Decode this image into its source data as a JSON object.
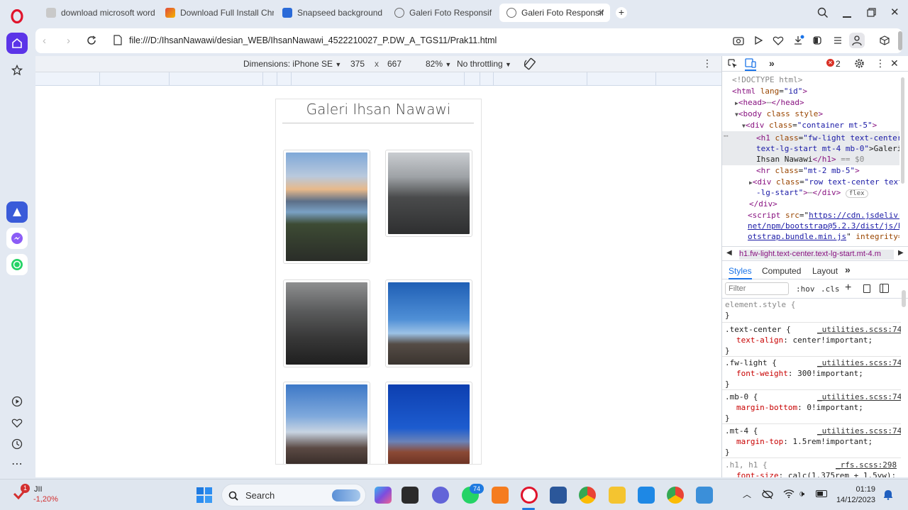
{
  "browser": {
    "tabs": [
      {
        "label": "download microsoft word",
        "favicon_color": "#c9c9c9"
      },
      {
        "label": "Download Full Install Chro",
        "favicon_color": "#e04a3c"
      },
      {
        "label": "Snapseed background",
        "favicon_color": "#2a6ad8"
      },
      {
        "label": "Galeri Foto Responsif",
        "favicon_color": "#6b6b6b"
      },
      {
        "label": "Galeri Foto Responsif",
        "favicon_color": "#6b6b6b",
        "active": true
      }
    ],
    "url": "file:///D:/IhsanNawawi/desian_WEB/IhsanNawawi_4522210027_P.DW_A_TGS11/Prak11.html"
  },
  "device_toolbar": {
    "dimensions_label": "Dimensions: iPhone SE",
    "width": "375",
    "times": "x",
    "height": "667",
    "zoom": "82%",
    "throttling": "No throttling"
  },
  "page": {
    "title": "Galeri Ihsan Nawawi",
    "photos": [
      {
        "name": "lake-sunset"
      },
      {
        "name": "rocky-hill-hiker"
      },
      {
        "name": "climbers-fog"
      },
      {
        "name": "summit-sky"
      },
      {
        "name": "summit-smoke"
      },
      {
        "name": "blue-sky-summit"
      }
    ]
  },
  "devtools": {
    "error_count": "2",
    "dom": {
      "doctype": "<!DOCTYPE html>",
      "html_open_tag": "<html",
      "html_lang_attr": "lang",
      "html_lang_val": "\"id\"",
      "html_close": ">",
      "head": "<head>",
      "head_close": "</head>",
      "body_open": "<body",
      "body_attr": "class style",
      "body_close": ">",
      "div_container_tag": "<div",
      "div_container_attr": "class",
      "div_container_val": "\"container mt-5\"",
      "h1_tag": "<h1",
      "h1_attr": "class",
      "h1_val_1": "\"fw-light text-center",
      "h1_val_2": "text-lg-start mt-4 mb-0\"",
      "h1_text_1": ">Galeri",
      "h1_text_2": "Ihsan Nawawi",
      "h1_close": "</h1>",
      "h1_eq": "== $0",
      "hr_tag": "<hr",
      "hr_attr": "class",
      "hr_val": "\"mt-2 mb-5\"",
      "div_row_tag": "<div",
      "div_row_attr": "class",
      "div_row_val_1": "\"row text-center text",
      "div_row_val_2": "-lg-start\"",
      "div_close_tag": "</div>",
      "flex_badge": "flex",
      "div_end": "</div>",
      "script_tag": "<script",
      "script_attr": "src",
      "script_src_1": "https://cdn.jsdelivr.",
      "script_src_2": "net/npm/bootstrap@5.2.3/dist/js/bo",
      "script_src_3": "otstrap.bundle.min.js",
      "script_integrity": "integrity="
    },
    "breadcrumb": "h1.fw-light.text-center.text-lg-start.mt-4.m",
    "panel_tabs": [
      "Styles",
      "Computed",
      "Layout"
    ],
    "filter_placeholder": "Filter",
    "hov": ":hov",
    "cls": ".cls",
    "rules": [
      {
        "selector": "element.style {",
        "source": "",
        "decl_prop": "",
        "decl_val": ""
      },
      {
        "selector": ".text-center {",
        "source": "_utilities.scss:74",
        "decl_prop": "text-align",
        "decl_val": "center!important;"
      },
      {
        "selector": ".fw-light {",
        "source": "_utilities.scss:74",
        "decl_prop": "font-weight",
        "decl_val": "300!important;"
      },
      {
        "selector": ".mb-0 {",
        "source": "_utilities.scss:74",
        "decl_prop": "margin-bottom",
        "decl_val": "0!important;"
      },
      {
        "selector": ".mt-4 {",
        "source": "_utilities.scss:74",
        "decl_prop": "margin-top",
        "decl_val": "1.5rem!important;"
      },
      {
        "selector": ".h1, h1 {",
        "source": "_rfs.scss:298",
        "decl_prop": "font-size",
        "decl_val": "calc(1.375rem + 1.5vw);"
      }
    ],
    "close_brace": "}"
  },
  "taskbar": {
    "weather_label": "JII",
    "weather_change": "-1,20%",
    "weather_badge": "1",
    "search_label": "Search",
    "whatsapp_badge": "74",
    "time": "01:19",
    "date": "14/12/2023"
  },
  "colors": {
    "opera_red": "#e0142c",
    "accent_purple": "#5b34e8",
    "devtools_blue": "#1a73e8",
    "error_red": "#d93025"
  }
}
